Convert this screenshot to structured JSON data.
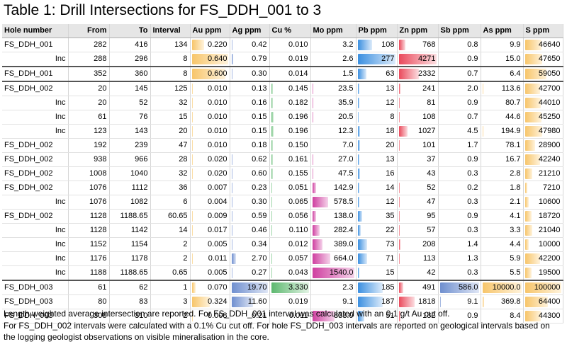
{
  "title": "Table 1: Drill Intersections for FS_DDH_001 to 3",
  "columns": [
    "Hole number",
    "From",
    "To",
    "Interval",
    "Au ppm",
    "Ag ppm",
    "Cu %",
    "Mo ppm",
    "Pb ppm",
    "Zn ppm",
    "Sb ppm",
    "As ppm",
    "S ppm"
  ],
  "colors": {
    "Au": "#f7c56a",
    "Ag": "#6f8fcf",
    "Cu": "#5db86f",
    "Mo": "#cf3fa0",
    "Pb": "#3b8fe0",
    "Zn": "#ea4a5c",
    "Sb": "#6f8fcf",
    "As": "#f7c56a",
    "S": "#f7c56a"
  },
  "rows": [
    [
      "FS_DDH_001",
      "282",
      "416",
      "134",
      "0.220",
      "0.42",
      "0.010",
      "3.2",
      "108",
      "768",
      "0.8",
      "9.9",
      "46640"
    ],
    [
      "Inc",
      "288",
      "296",
      "8",
      "0.640",
      "0.79",
      "0.019",
      "2.6",
      "277",
      "4271",
      "0.9",
      "15.0",
      "47650"
    ],
    [
      "FS_DDH_001",
      "352",
      "360",
      "8",
      "0.600",
      "0.30",
      "0.014",
      "1.5",
      "63",
      "2332",
      "0.7",
      "6.4",
      "59050"
    ],
    [
      "FS_DDH_002",
      "20",
      "145",
      "125",
      "0.010",
      "0.13",
      "0.145",
      "23.5",
      "13",
      "241",
      "2.0",
      "113.6",
      "42700"
    ],
    [
      "Inc",
      "20",
      "52",
      "32",
      "0.010",
      "0.16",
      "0.182",
      "35.9",
      "12",
      "81",
      "0.9",
      "80.7",
      "44010"
    ],
    [
      "Inc",
      "61",
      "76",
      "15",
      "0.010",
      "0.15",
      "0.196",
      "20.5",
      "8",
      "108",
      "0.7",
      "44.6",
      "45250"
    ],
    [
      "Inc",
      "123",
      "143",
      "20",
      "0.010",
      "0.15",
      "0.196",
      "12.3",
      "18",
      "1027",
      "4.5",
      "194.9",
      "47980"
    ],
    [
      "FS_DDH_002",
      "192",
      "239",
      "47",
      "0.010",
      "0.18",
      "0.150",
      "7.0",
      "20",
      "101",
      "1.7",
      "78.1",
      "28900"
    ],
    [
      "FS_DDH_002",
      "938",
      "966",
      "28",
      "0.020",
      "0.62",
      "0.161",
      "27.0",
      "13",
      "37",
      "0.9",
      "16.7",
      "42240"
    ],
    [
      "FS_DDH_002",
      "1008",
      "1040",
      "32",
      "0.020",
      "0.60",
      "0.155",
      "47.5",
      "16",
      "43",
      "0.3",
      "2.8",
      "21210"
    ],
    [
      "FS_DDH_002",
      "1076",
      "1112",
      "36",
      "0.007",
      "0.23",
      "0.051",
      "142.9",
      "14",
      "52",
      "0.2",
      "1.8",
      "7210"
    ],
    [
      "Inc",
      "1076",
      "1082",
      "6",
      "0.004",
      "0.30",
      "0.065",
      "578.5",
      "12",
      "47",
      "0.3",
      "2.1",
      "10600"
    ],
    [
      "FS_DDH_002",
      "1128",
      "1188.65",
      "60.65",
      "0.009",
      "0.59",
      "0.056",
      "138.0",
      "35",
      "95",
      "0.9",
      "4.1",
      "18720"
    ],
    [
      "Inc",
      "1128",
      "1142",
      "14",
      "0.017",
      "0.46",
      "0.110",
      "282.4",
      "22",
      "57",
      "0.3",
      "3.3",
      "21040"
    ],
    [
      "Inc",
      "1152",
      "1154",
      "2",
      "0.005",
      "0.34",
      "0.012",
      "389.0",
      "73",
      "208",
      "1.4",
      "4.4",
      "10000"
    ],
    [
      "Inc",
      "1176",
      "1178",
      "2",
      "0.011",
      "2.70",
      "0.057",
      "664.0",
      "71",
      "113",
      "1.3",
      "5.9",
      "42200"
    ],
    [
      "Inc",
      "1188",
      "1188.65",
      "0.65",
      "0.005",
      "0.27",
      "0.043",
      "1540.0",
      "15",
      "42",
      "0.3",
      "5.5",
      "19500"
    ],
    [
      "FS_DDH_003",
      "61",
      "62",
      "1",
      "0.070",
      "19.70",
      "3.330",
      "2.3",
      "185",
      "491",
      "586.0",
      "10000.0",
      "100000"
    ],
    [
      "FS_DDH_003",
      "80",
      "83",
      "3",
      "0.324",
      "11.60",
      "0.019",
      "9.1",
      "187",
      "1818",
      "9.1",
      "369.8",
      "64400"
    ],
    [
      "FS_DDH_003",
      "308",
      "310",
      "2",
      "0.008",
      "0.21",
      "0.011",
      "833.0",
      "51",
      "182",
      "0.9",
      "8.4",
      "44300"
    ]
  ],
  "notes": [
    "Length weighted average intersection are reported.  For FS_DDH_001 interval was calculated with an 0.1 g/t Au cut off.",
    "For FS_DDH_002 intervals were calculated with a 0.1% Cu cut off.  For hole FS_DDH_003 intervals are reported on geological intervals based on the logging geologist observations on visible mineralisation in the core."
  ]
}
